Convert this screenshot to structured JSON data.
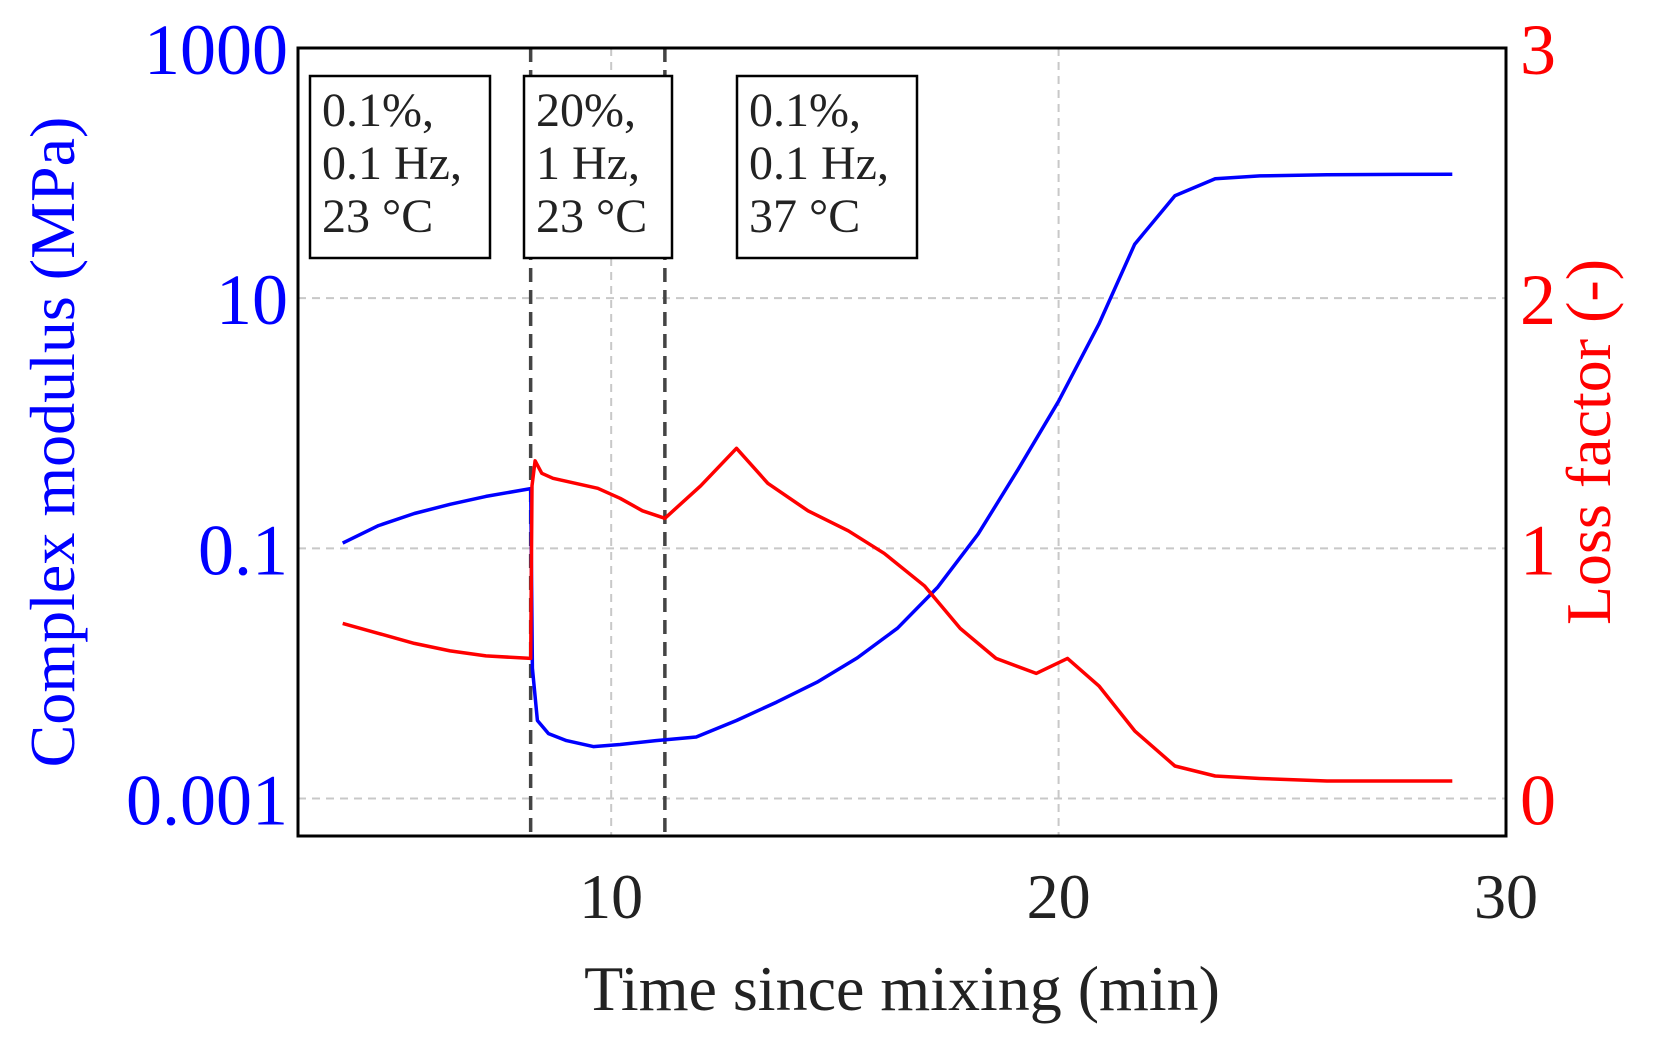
{
  "chart_data": {
    "type": "line",
    "xlabel": "Time since mixing (min)",
    "ylabel_left": "Complex modulus (MPa)",
    "ylabel_right": "Loss factor (-)",
    "xlim": [
      3,
      30
    ],
    "xticks": [
      10,
      20,
      30
    ],
    "xtick_labels": [
      "10",
      "20",
      "30"
    ],
    "ylim_left_log10": [
      -3.3,
      3
    ],
    "yticks_left": [
      0.001,
      0.1,
      10,
      1000
    ],
    "ytick_labels_left": [
      "0.001",
      "0.1",
      "10",
      "1000"
    ],
    "ylim_right": [
      -0.15,
      3
    ],
    "yticks_right": [
      0,
      1,
      2,
      3
    ],
    "ytick_labels_right": [
      "0",
      "1",
      "2",
      "3"
    ],
    "grid": true,
    "colors": {
      "modulus": "#0000ff",
      "loss": "#ff0000",
      "frame": "#000000",
      "grid": "#c8c8c8",
      "marker_line": "#444444"
    },
    "vlines_x": [
      8.2,
      11.2
    ],
    "annotations": [
      {
        "lines": [
          "0.1%,",
          "0.1 Hz,",
          "23 °C"
        ]
      },
      {
        "lines": [
          "20%,",
          "1 Hz,",
          "23 °C"
        ]
      },
      {
        "lines": [
          "0.1%,",
          "0.1 Hz,",
          "37 °C"
        ]
      }
    ],
    "series": [
      {
        "name": "Complex modulus",
        "axis": "left",
        "x": [
          4.0,
          4.8,
          5.6,
          6.4,
          7.2,
          8.2,
          8.24,
          8.35,
          8.6,
          9.0,
          9.6,
          10.2,
          11.0,
          11.9,
          12.8,
          13.7,
          14.6,
          15.5,
          16.4,
          17.3,
          18.2,
          19.1,
          20.0,
          20.9,
          21.7,
          22.6,
          23.5,
          24.5,
          26.0,
          28.8
        ],
        "y": [
          0.11,
          0.152,
          0.19,
          0.225,
          0.26,
          0.3,
          0.011,
          0.0042,
          0.0033,
          0.0029,
          0.0026,
          0.0027,
          0.0029,
          0.0031,
          0.0042,
          0.0059,
          0.0085,
          0.0133,
          0.023,
          0.049,
          0.13,
          0.43,
          1.5,
          6.2,
          27.0,
          66.0,
          90.0,
          95.0,
          97.0,
          98.0
        ]
      },
      {
        "name": "Loss factor",
        "axis": "right",
        "x": [
          4.0,
          4.8,
          5.6,
          6.4,
          7.2,
          8.2,
          8.23,
          8.3,
          8.45,
          8.7,
          9.2,
          9.7,
          10.2,
          10.7,
          11.2,
          12.0,
          12.8,
          13.5,
          14.4,
          15.3,
          16.1,
          17.0,
          17.8,
          18.6,
          19.5,
          20.2,
          20.9,
          21.7,
          22.6,
          23.5,
          24.5,
          26.0,
          28.8
        ],
        "y": [
          0.7,
          0.66,
          0.62,
          0.59,
          0.57,
          0.56,
          1.25,
          1.35,
          1.3,
          1.28,
          1.26,
          1.24,
          1.2,
          1.15,
          1.12,
          1.25,
          1.4,
          1.26,
          1.15,
          1.07,
          0.98,
          0.85,
          0.68,
          0.56,
          0.5,
          0.56,
          0.45,
          0.27,
          0.13,
          0.09,
          0.08,
          0.07,
          0.07
        ]
      }
    ]
  }
}
